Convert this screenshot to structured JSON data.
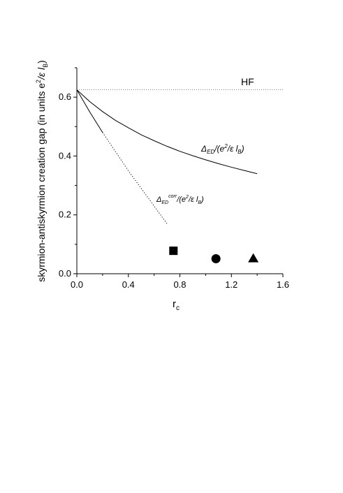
{
  "chart_data": {
    "type": "line",
    "xlabel": {
      "main": "r",
      "sub": "c"
    },
    "ylabel": {
      "main": "skyrmion-antiskyrmion creation gap (in units e",
      "sup": "2",
      "mid": "/ε l",
      "sub": "B",
      "close": ")"
    },
    "xlim": [
      0.0,
      1.6
    ],
    "ylim": [
      0.0,
      0.7
    ],
    "xticks": [
      "0.0",
      "0.4",
      "0.8",
      "1.2",
      "1.6"
    ],
    "yticks": [
      "0.0",
      "0.2",
      "0.4",
      "0.6"
    ],
    "grid": false,
    "hf_level": 0.625,
    "series": [
      {
        "name": "HF",
        "style": "dotted",
        "x": [
          0.0,
          1.6
        ],
        "y": [
          0.625,
          0.625
        ]
      },
      {
        "name": "Δ_ED/(e²/ε l_B)",
        "style": "solid",
        "x": [
          0.0,
          0.1,
          0.2,
          0.3,
          0.4,
          0.5,
          0.6,
          0.7,
          0.8,
          0.9,
          1.0,
          1.1,
          1.2,
          1.3,
          1.4
        ],
        "y": [
          0.625,
          0.585,
          0.551,
          0.521,
          0.496,
          0.472,
          0.452,
          0.433,
          0.416,
          0.401,
          0.387,
          0.374,
          0.362,
          0.351,
          0.34
        ]
      },
      {
        "name": "Δ_ED^corr/(e²/ε l_B)",
        "style": "solid-then-dotted",
        "x": [
          0.0,
          0.1,
          0.2,
          0.3,
          0.4,
          0.5,
          0.6,
          0.7
        ],
        "y": [
          0.625,
          0.55,
          0.48,
          0.415,
          0.35,
          0.29,
          0.23,
          0.17
        ]
      }
    ],
    "markers": [
      {
        "shape": "square",
        "x": 0.75,
        "y": 0.078
      },
      {
        "shape": "circle",
        "x": 1.08,
        "y": 0.051
      },
      {
        "shape": "triangle",
        "x": 1.37,
        "y": 0.053
      }
    ],
    "annotations": {
      "hf": "HF",
      "ed": {
        "delta": "Δ",
        "sub": "ED",
        "rest1": "/(e",
        "sup": "2",
        "rest2": "/ε l",
        "sub2": "B",
        "close": ")"
      },
      "corr": {
        "delta": "Δ",
        "sub": "ED",
        "sup1": "corr",
        "rest1": "/(e",
        "sup": "2",
        "rest2": "/ε l",
        "sub2": "B",
        "close": ")"
      }
    }
  }
}
